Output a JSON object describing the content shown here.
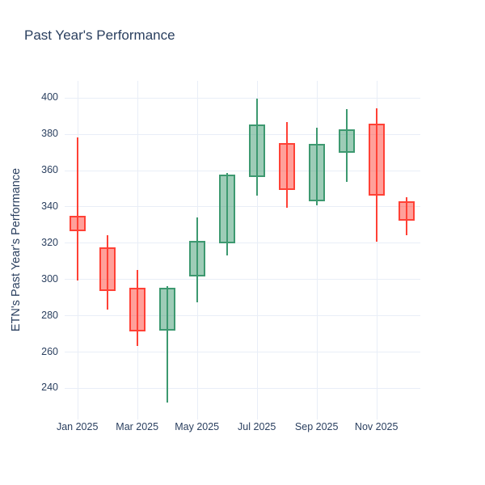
{
  "chart_data": {
    "type": "candlestick",
    "title": "Past Year's Performance",
    "xlabel": "",
    "ylabel": "ETN's Past Year's Performance",
    "x_tick_labels": [
      "Jan 2025",
      "Mar 2025",
      "May 2025",
      "Jul 2025",
      "Sep 2025",
      "Nov 2025"
    ],
    "y_ticks": [
      240,
      260,
      280,
      300,
      320,
      340,
      360,
      380,
      400
    ],
    "y_range": [
      222.6,
      409.2
    ],
    "grid": true,
    "legend": false,
    "categories": [
      "Jan 2025",
      "Feb 2025",
      "Mar 2025",
      "Apr 2025",
      "May 2025",
      "Jun 2025",
      "Jul 2025",
      "Aug 2025",
      "Sep 2025",
      "Oct 2025",
      "Nov 2025",
      "Dec 2025"
    ],
    "series": [
      {
        "month": "Jan 2025",
        "open": 335.0,
        "high": 378.0,
        "low": 299.0,
        "close": 326.5,
        "direction": "decreasing"
      },
      {
        "month": "Feb 2025",
        "open": 317.5,
        "high": 324.0,
        "low": 283.0,
        "close": 293.5,
        "direction": "decreasing"
      },
      {
        "month": "Mar 2025",
        "open": 295.0,
        "high": 305.0,
        "low": 263.0,
        "close": 271.0,
        "direction": "decreasing"
      },
      {
        "month": "Apr 2025",
        "open": 271.5,
        "high": 296.0,
        "low": 232.0,
        "close": 295.0,
        "direction": "increasing"
      },
      {
        "month": "May 2025",
        "open": 301.5,
        "high": 334.0,
        "low": 287.0,
        "close": 321.0,
        "direction": "increasing"
      },
      {
        "month": "Jun 2025",
        "open": 319.5,
        "high": 358.5,
        "low": 313.0,
        "close": 357.5,
        "direction": "increasing"
      },
      {
        "month": "Jul 2025",
        "open": 356.0,
        "high": 399.5,
        "low": 346.0,
        "close": 385.0,
        "direction": "increasing"
      },
      {
        "month": "Aug 2025",
        "open": 375.0,
        "high": 386.5,
        "low": 339.5,
        "close": 349.0,
        "direction": "decreasing"
      },
      {
        "month": "Sep 2025",
        "open": 343.0,
        "high": 383.5,
        "low": 340.5,
        "close": 374.5,
        "direction": "increasing"
      },
      {
        "month": "Oct 2025",
        "open": 369.5,
        "high": 393.5,
        "low": 353.5,
        "close": 382.5,
        "direction": "increasing"
      },
      {
        "month": "Nov 2025",
        "open": 385.5,
        "high": 394.0,
        "low": 320.5,
        "close": 346.0,
        "direction": "decreasing"
      },
      {
        "month": "Dec 2025",
        "open": 343.0,
        "high": 345.0,
        "low": 324.0,
        "close": 332.0,
        "direction": "decreasing"
      }
    ],
    "colors": {
      "increasing_line": "#3d9970",
      "increasing_fill": "rgba(61,153,112,0.5)",
      "decreasing_line": "#ff4136",
      "decreasing_fill": "rgba(255,65,54,0.5)",
      "gridline": "#e9eef7",
      "text": "#2a3f5f",
      "background": "#ffffff"
    }
  }
}
